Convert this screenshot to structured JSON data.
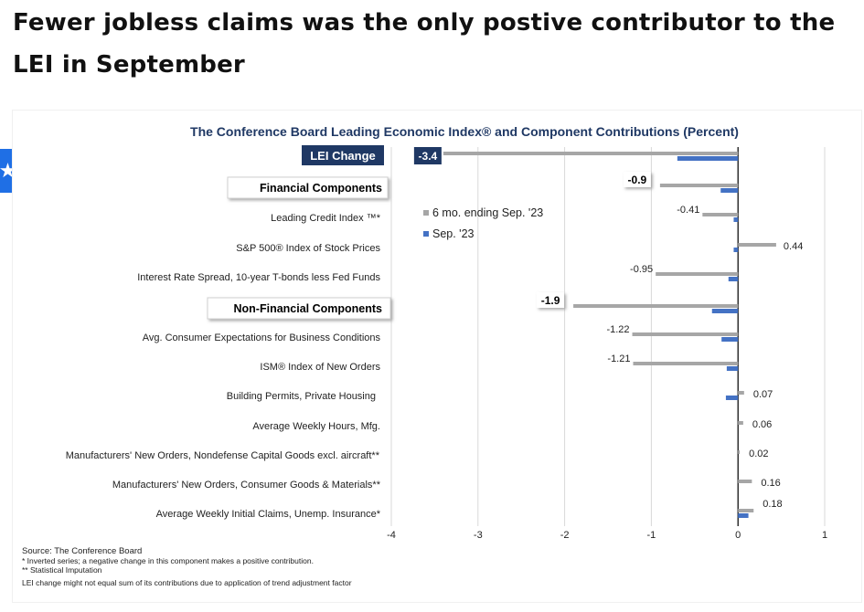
{
  "page": {
    "headline": "Fewer jobless claims was the only postive contributor to the LEI in September",
    "accessibility_icon": "accessibility-icon"
  },
  "chart_data": {
    "type": "bar",
    "orientation": "horizontal",
    "title": "The Conference Board Leading Economic Index® and Component Contributions (Percent)",
    "xlim": [
      -4,
      1
    ],
    "x_ticks": [
      "-4",
      "-3",
      "-2",
      "-1",
      "0",
      "1"
    ],
    "grid": true,
    "legend_position": "top-left of plot",
    "series": [
      {
        "name": "6 mo. ending Sep. '23",
        "color": "#a6a6a6"
      },
      {
        "name": "Sep. '23",
        "color": "#4472c4"
      }
    ],
    "rows": [
      {
        "label": "LEI Change",
        "kind": "header-blue",
        "six_month": -3.4,
        "sep": -0.7,
        "value_label": "-3.4"
      },
      {
        "label": "Financial Components",
        "kind": "header",
        "six_month": -0.9,
        "sep": -0.2,
        "value_label": "-0.9"
      },
      {
        "label": "Leading Credit Index ™*",
        "kind": "item",
        "six_month": -0.41,
        "sep": -0.05,
        "value_label": "-0.41"
      },
      {
        "label": "S&P 500® Index of Stock Prices",
        "kind": "item",
        "six_month": 0.44,
        "sep": -0.05,
        "value_label": "0.44"
      },
      {
        "label": "Interest Rate Spread, 10-year T-bonds less Fed Funds",
        "kind": "item",
        "six_month": -0.95,
        "sep": -0.11,
        "value_label": "-0.95"
      },
      {
        "label": "Non-Financial Components",
        "kind": "header",
        "six_month": -1.9,
        "sep": -0.3,
        "value_label": "-1.9"
      },
      {
        "label": "Avg. Consumer Expectations for Business Conditions",
        "kind": "item",
        "six_month": -1.22,
        "sep": -0.19,
        "value_label": "-1.22"
      },
      {
        "label": "ISM® Index of New Orders",
        "kind": "item",
        "six_month": -1.21,
        "sep": -0.13,
        "value_label": "-1.21"
      },
      {
        "label": "Building Permits, Private Housing",
        "kind": "item",
        "six_month": 0.07,
        "sep": -0.14,
        "value_label": "0.07"
      },
      {
        "label": "Average Weekly Hours, Mfg.",
        "kind": "item",
        "six_month": 0.06,
        "sep": 0.0,
        "value_label": "0.06"
      },
      {
        "label": "Manufacturers' New Orders, Nondefense Capital Goods excl. aircraft**",
        "kind": "item",
        "six_month": 0.02,
        "sep": 0.0,
        "value_label": "0.02"
      },
      {
        "label": "Manufacturers' New Orders, Consumer Goods & Materials**",
        "kind": "item",
        "six_month": 0.16,
        "sep": 0.0,
        "value_label": "0.16"
      },
      {
        "label": "Average Weekly Initial Claims, Unemp. Insurance*",
        "kind": "item",
        "six_month": 0.18,
        "sep": 0.12,
        "value_label": "0.18"
      }
    ],
    "footnotes": [
      "Source: The Conference Board",
      "*  Inverted series; a negative change in this component makes a positive contribution.",
      "**  Statistical Imputation",
      "LEI change might not equal sum of    its contributions due to application of trend adjustment factor"
    ]
  },
  "colors": {
    "title_blue": "#1f3864",
    "header_blue_box": "#1f3864",
    "six_month_bar": "#a6a6a6",
    "sep_bar": "#4472c4",
    "grid": "#d9d9d9"
  }
}
